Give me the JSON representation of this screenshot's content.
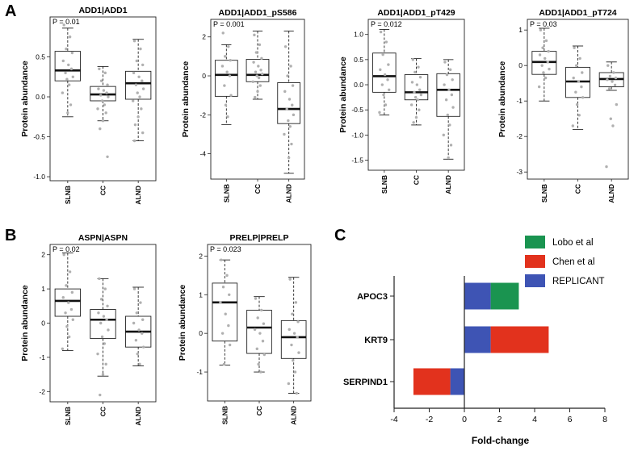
{
  "panels": [
    {
      "letter": "A"
    },
    {
      "letter": "B"
    },
    {
      "letter": "C"
    }
  ],
  "chart_data": [
    {
      "type": "box",
      "panel": "A",
      "title": "ADD1|ADD1",
      "pvalue": "P = 0.01",
      "ylabel": "Protein abundance",
      "categories": [
        "SLNB",
        "CC",
        "ALND"
      ],
      "ylim": [
        -1.05,
        1.0
      ],
      "yticks": [
        -1.0,
        -0.5,
        0.0,
        0.5
      ],
      "ytick_labels": [
        "-1.0",
        "-0.5",
        "0.0",
        "0.5"
      ],
      "boxes": [
        {
          "whisker_low": -0.25,
          "q1": 0.2,
          "median": 0.33,
          "q3": 0.57,
          "whisker_high": 0.86
        },
        {
          "whisker_low": -0.3,
          "q1": -0.05,
          "median": 0.03,
          "q3": 0.13,
          "whisker_high": 0.38
        },
        {
          "whisker_low": -0.55,
          "q1": -0.03,
          "median": 0.17,
          "q3": 0.32,
          "whisker_high": 0.72
        }
      ],
      "points": [
        [
          0.9,
          0.75,
          0.6,
          0.55,
          0.45,
          0.4,
          0.35,
          0.3,
          0.25,
          0.22,
          0.15,
          0.05,
          -0.1,
          -0.2
        ],
        [
          0.35,
          0.3,
          0.2,
          0.15,
          0.1,
          0.08,
          0.05,
          0.02,
          0.0,
          -0.05,
          -0.1,
          -0.15,
          -0.2,
          -0.3,
          -0.4,
          -0.75
        ],
        [
          0.7,
          0.6,
          0.45,
          0.4,
          0.3,
          0.25,
          0.2,
          0.15,
          0.1,
          0.05,
          0.0,
          -0.05,
          -0.15,
          -0.25,
          -0.35,
          -0.45,
          -0.55
        ]
      ]
    },
    {
      "type": "box",
      "panel": "A",
      "title": "ADD1|ADD1_pS586",
      "pvalue": "P = 0.001",
      "ylabel": "Protein abundance",
      "categories": [
        "SLNB",
        "CC",
        "ALND"
      ],
      "ylim": [
        -5.3,
        2.9
      ],
      "yticks": [
        -4,
        -2,
        0,
        2
      ],
      "ytick_labels": [
        "-4",
        "-2",
        "0",
        "2"
      ],
      "boxes": [
        {
          "whisker_low": -2.5,
          "q1": -1.05,
          "median": 0.05,
          "q3": 0.8,
          "whisker_high": 1.6
        },
        {
          "whisker_low": -1.2,
          "q1": -0.3,
          "median": 0.05,
          "q3": 0.85,
          "whisker_high": 2.3
        },
        {
          "whisker_low": -5.0,
          "q1": -2.45,
          "median": -1.7,
          "q3": -0.35,
          "whisker_high": 2.3
        }
      ],
      "points": [
        [
          2.2,
          1.5,
          1.0,
          0.8,
          0.5,
          0.2,
          0.0,
          -0.5,
          -1.0,
          -1.5,
          -2.1
        ],
        [
          2.1,
          1.6,
          1.2,
          0.9,
          0.7,
          0.5,
          0.3,
          0.2,
          0.1,
          0.0,
          -0.1,
          -0.3,
          -0.5,
          -0.8,
          -1.1
        ],
        [
          1.5,
          0.5,
          0.0,
          -0.5,
          -0.8,
          -1.2,
          -1.5,
          -1.7,
          -2.0,
          -2.3,
          -2.6,
          -3.0,
          -3.5,
          -4.2
        ]
      ]
    },
    {
      "type": "box",
      "panel": "A",
      "title": "ADD1|ADD1_pT429",
      "pvalue": "P = 0.012",
      "ylabel": "Protein abundance",
      "categories": [
        "SLNB",
        "CC",
        "ALND"
      ],
      "ylim": [
        -1.7,
        1.3
      ],
      "yticks": [
        -1.5,
        -1.0,
        -0.5,
        0.0,
        0.5,
        1.0
      ],
      "ytick_labels": [
        "-1.5",
        "-1.0",
        "-0.5",
        "0.0",
        "0.5",
        "1.0"
      ],
      "boxes": [
        {
          "whisker_low": -0.6,
          "q1": -0.15,
          "median": 0.17,
          "q3": 0.63,
          "whisker_high": 1.1
        },
        {
          "whisker_low": -0.8,
          "q1": -0.3,
          "median": -0.15,
          "q3": 0.2,
          "whisker_high": 0.52
        },
        {
          "whisker_low": -1.48,
          "q1": -0.63,
          "median": -0.1,
          "q3": 0.22,
          "whisker_high": 0.5
        }
      ],
      "points": [
        [
          1.05,
          0.85,
          0.6,
          0.4,
          0.3,
          0.2,
          0.1,
          0.0,
          -0.1,
          -0.2,
          -0.4,
          -0.55
        ],
        [
          0.5,
          0.35,
          0.25,
          0.15,
          0.05,
          0.0,
          -0.1,
          -0.15,
          -0.2,
          -0.25,
          -0.3,
          -0.4,
          -0.5,
          -0.65,
          -0.75
        ],
        [
          0.45,
          0.3,
          0.2,
          0.1,
          0.0,
          -0.1,
          -0.2,
          -0.3,
          -0.45,
          -0.6,
          -0.8,
          -1.0,
          -1.2,
          -1.45
        ]
      ]
    },
    {
      "type": "box",
      "panel": "A",
      "title": "ADD1|ADD1_pT724",
      "pvalue": "P = 0.03",
      "ylabel": "Protein abundance",
      "categories": [
        "SLNB",
        "CC",
        "ALND"
      ],
      "ylim": [
        -3.2,
        1.3
      ],
      "yticks": [
        -3,
        -2,
        -1,
        0,
        1
      ],
      "ytick_labels": [
        "-3",
        "-2",
        "-1",
        "0",
        "1"
      ],
      "boxes": [
        {
          "whisker_low": -1.0,
          "q1": -0.25,
          "median": 0.1,
          "q3": 0.4,
          "whisker_high": 1.05
        },
        {
          "whisker_low": -1.8,
          "q1": -0.9,
          "median": -0.45,
          "q3": -0.05,
          "whisker_high": 0.55
        },
        {
          "whisker_low": -0.7,
          "q1": -0.6,
          "median": -0.38,
          "q3": -0.2,
          "whisker_high": 0.1
        }
      ],
      "points": [
        [
          1.0,
          0.7,
          0.5,
          0.4,
          0.3,
          0.2,
          0.1,
          0.0,
          -0.1,
          -0.2,
          -0.35,
          -0.6
        ],
        [
          0.5,
          0.2,
          0.0,
          -0.2,
          -0.35,
          -0.45,
          -0.6,
          -0.75,
          -0.9,
          -1.1,
          -1.4,
          -1.7
        ],
        [
          0.0,
          -0.2,
          -0.3,
          -0.35,
          -0.4,
          -0.45,
          -0.55,
          -0.65,
          -1.1,
          -1.5,
          -1.7,
          -2.85
        ]
      ]
    },
    {
      "type": "box",
      "panel": "B",
      "title": "ASPN|ASPN",
      "pvalue": "P = 0.02",
      "ylabel": "Protein abundance",
      "categories": [
        "SLNB",
        "CC",
        "ALND"
      ],
      "ylim": [
        -2.3,
        2.3
      ],
      "yticks": [
        -2,
        -1,
        0,
        1,
        2
      ],
      "ytick_labels": [
        "-2",
        "-1",
        "0",
        "1",
        "2"
      ],
      "boxes": [
        {
          "whisker_low": -0.8,
          "q1": 0.2,
          "median": 0.65,
          "q3": 1.0,
          "whisker_high": 2.05
        },
        {
          "whisker_low": -1.55,
          "q1": -0.45,
          "median": 0.1,
          "q3": 0.4,
          "whisker_high": 1.3
        },
        {
          "whisker_low": -1.25,
          "q1": -0.7,
          "median": -0.25,
          "q3": 0.2,
          "whisker_high": 1.05
        }
      ],
      "points": [
        [
          2.0,
          1.5,
          1.1,
          0.9,
          0.75,
          0.6,
          0.4,
          0.3,
          0.1,
          -0.1,
          -0.4,
          -0.75
        ],
        [
          1.3,
          1.0,
          0.7,
          0.5,
          0.3,
          0.2,
          0.1,
          0.0,
          -0.2,
          -0.4,
          -0.6,
          -0.9,
          -1.2,
          -1.5,
          -2.1
        ],
        [
          1.0,
          0.6,
          0.3,
          0.1,
          0.0,
          -0.2,
          -0.3,
          -0.5,
          -0.7,
          -0.9,
          -1.2
        ]
      ]
    },
    {
      "type": "box",
      "panel": "B",
      "title": "PRELP|PRELP",
      "pvalue": "P = 0.023",
      "ylabel": "Protein abundance",
      "categories": [
        "SLNB",
        "CC",
        "ALND"
      ],
      "ylim": [
        -1.75,
        2.3
      ],
      "yticks": [
        -1,
        0,
        1,
        2
      ],
      "ytick_labels": [
        "-1",
        "0",
        "1",
        "2"
      ],
      "boxes": [
        {
          "whisker_low": -0.82,
          "q1": -0.2,
          "median": 0.8,
          "q3": 1.3,
          "whisker_high": 1.9
        },
        {
          "whisker_low": -1.0,
          "q1": -0.52,
          "median": 0.15,
          "q3": 0.6,
          "whisker_high": 0.95
        },
        {
          "whisker_low": -1.55,
          "q1": -0.65,
          "median": -0.1,
          "q3": 0.33,
          "whisker_high": 1.45
        }
      ],
      "points": [
        [
          1.9,
          1.5,
          1.2,
          1.0,
          0.8,
          0.5,
          0.2,
          0.0,
          -0.3,
          -0.8
        ],
        [
          0.9,
          0.6,
          0.4,
          0.25,
          0.1,
          0.0,
          -0.2,
          -0.4,
          -0.55,
          -0.8,
          -1.0
        ],
        [
          1.4,
          0.8,
          0.5,
          0.3,
          0.1,
          0.0,
          -0.1,
          -0.3,
          -0.5,
          -0.7,
          -1.0,
          -1.3,
          -1.55
        ]
      ]
    },
    {
      "type": "bar",
      "orientation": "horizontal",
      "stacked": true,
      "panel": "C",
      "categories": [
        "APOC3",
        "KRT9",
        "SERPIND1"
      ],
      "series": [
        {
          "name": "Lobo et al",
          "color": "#1a9450",
          "values": [
            1.6,
            0.0,
            0.0
          ]
        },
        {
          "name": "Chen et al",
          "color": "#e2321d",
          "values": [
            0.0,
            3.3,
            -2.1
          ]
        },
        {
          "name": "REPLICANT",
          "color": "#3e54b4",
          "values": [
            1.5,
            1.5,
            -0.8
          ]
        }
      ],
      "xlabel": "Fold-change",
      "xlim": [
        -4,
        8
      ],
      "xticks": [
        -4,
        -2,
        0,
        2,
        4,
        6,
        8
      ],
      "xtick_labels": [
        "-4",
        "-2",
        "0",
        "2",
        "4",
        "6",
        "8"
      ],
      "legend": "top-right"
    }
  ]
}
